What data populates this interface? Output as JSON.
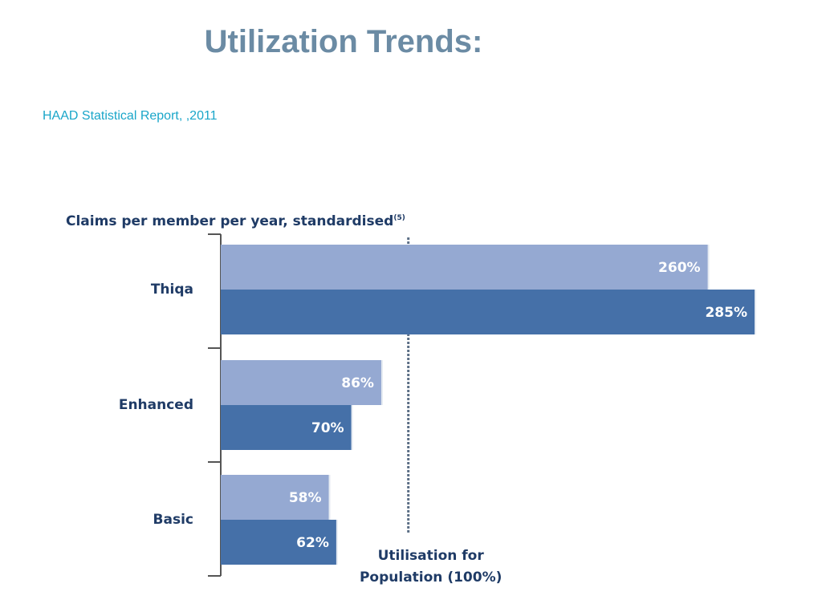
{
  "slide": {
    "title": "Utilization Trends:",
    "source": "HAAD Statistical Report, ,2011"
  },
  "colors": {
    "title": "#6b8ba4",
    "source": "#1aa6c9",
    "series_light": "#95a9d2",
    "series_dark": "#4570a8",
    "chart_text": "#1f3b66",
    "reference_line": "#5c6f86"
  },
  "chart_data": {
    "type": "bar",
    "orientation": "horizontal",
    "title": "Claims per member per year, standardised",
    "title_superscript": "(5)",
    "categories": [
      "Thiqa",
      "Enhanced",
      "Basic"
    ],
    "series": [
      {
        "values": [
          260,
          86,
          58
        ],
        "labels": [
          "260%",
          "86%",
          "58%"
        ]
      },
      {
        "values": [
          285,
          70,
          62
        ],
        "labels": [
          "285%",
          "70%",
          "62%"
        ]
      }
    ],
    "unit": "%",
    "xlim": [
      0,
      285
    ],
    "reference_line": {
      "value": 100,
      "label_lines": [
        "Utilisation for",
        "Population (100%)"
      ]
    },
    "grid": false,
    "legend": "none"
  }
}
